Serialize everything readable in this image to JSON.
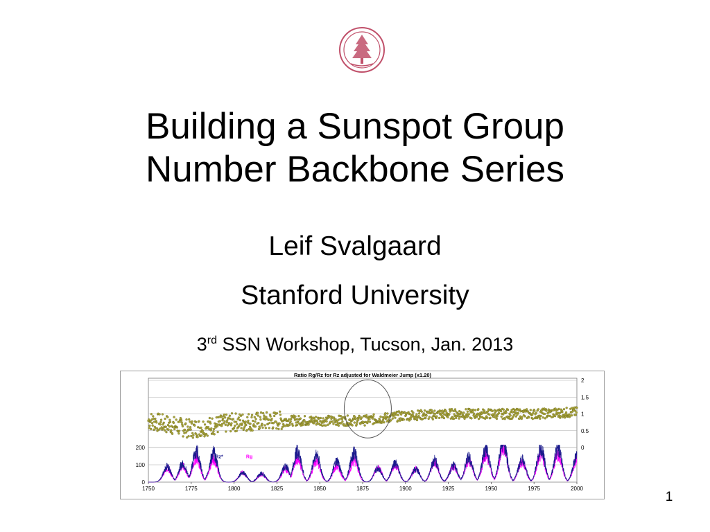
{
  "slide": {
    "title_line1": "Building a Sunspot Group",
    "title_line2": "Number Backbone Series",
    "author": "Leif Svalgaard",
    "affiliation": "Stanford University",
    "event_ordinal": "3",
    "event_ordinal_suffix": "rd",
    "event_rest": " SSN Workshop, Tucson, Jan. 2013",
    "page_number": "1"
  },
  "colors": {
    "seal": "#c0506a",
    "ratio_points": "#a8a33a",
    "rz_line": "#1a1a8c",
    "rg_line": "#ff00ff"
  },
  "chart_data": {
    "type": "line",
    "title": "Ratio Rg/Rz for Rz adjusted for Waldmeier Jump (x1.20)",
    "x_ticks": [
      "1750",
      "1775",
      "1800",
      "1825",
      "1850",
      "1875",
      "1900",
      "1925",
      "1950",
      "1975",
      "2000"
    ],
    "xlim": [
      1750,
      2000
    ],
    "left_axis_ticks": [
      "0",
      "100",
      "200"
    ],
    "left_ylim": [
      0,
      200
    ],
    "right_axis_ticks": [
      "0",
      "0.5",
      "1",
      "1.5",
      "2"
    ],
    "right_ylim": [
      0,
      2
    ],
    "grid": "horizontal",
    "legend": [
      "Rz*",
      "Rg"
    ],
    "series": [
      {
        "name": "Rz*",
        "axis": "left",
        "style": "line",
        "maxima_years": [
          1761,
          1770,
          1778,
          1788,
          1805,
          1816,
          1830,
          1837,
          1848,
          1860,
          1870,
          1884,
          1894,
          1906,
          1917,
          1928,
          1937,
          1947,
          1957,
          1968,
          1979,
          1989,
          2000
        ],
        "maxima_values": [
          90,
          105,
          175,
          165,
          55,
          50,
          90,
          175,
          155,
          115,
          170,
          80,
          105,
          75,
          125,
          95,
          140,
          185,
          230,
          130,
          190,
          190,
          145
        ]
      },
      {
        "name": "Rg",
        "axis": "left",
        "style": "line",
        "maxima_years": [
          1761,
          1770,
          1778,
          1788,
          1805,
          1816,
          1830,
          1837,
          1848,
          1860,
          1870,
          1884,
          1894,
          1906,
          1917,
          1928,
          1937,
          1947,
          1957,
          1968,
          1979,
          1989,
          2000
        ],
        "maxima_values": [
          80,
          90,
          140,
          130,
          55,
          45,
          75,
          135,
          120,
          90,
          125,
          80,
          100,
          75,
          115,
          90,
          125,
          155,
          200,
          115,
          160,
          160,
          125
        ]
      },
      {
        "name": "",
        "axis": "right",
        "style": "scatter",
        "years": [
          1750,
          1775,
          1800,
          1825,
          1850,
          1875,
          1900,
          1925,
          1950,
          1975,
          2000
        ],
        "values": [
          0.8,
          0.55,
          0.75,
          0.8,
          0.8,
          0.8,
          0.95,
          1.0,
          1.0,
          1.0,
          1.05
        ]
      }
    ],
    "annotation": "ellipse around 1865-1890"
  }
}
